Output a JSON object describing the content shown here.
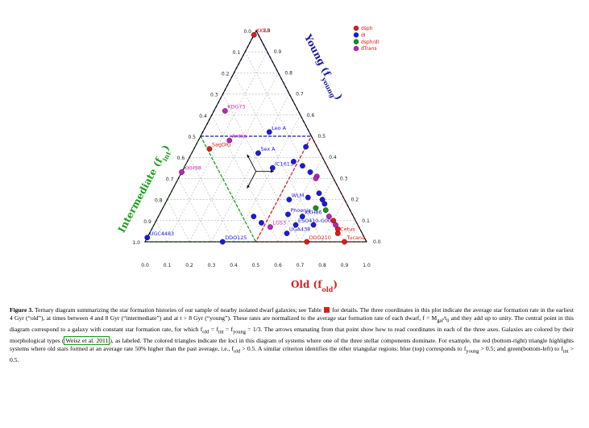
{
  "chart_data": {
    "type": "ternary",
    "axes": {
      "old": "Old (f",
      "old_sub": "old",
      "young": "Young (f",
      "young_sub": "young",
      "intermediate": "Intermediate (f",
      "intermediate_sub": "int",
      "close": ")"
    },
    "ticks": {
      "old": [
        "0.0",
        "0.1",
        "0.2",
        "0.3",
        "0.4",
        "0.5",
        "0.6",
        "0.7",
        "0.8",
        "0.9",
        "1.0"
      ],
      "young": [
        "0.0",
        "0.1",
        "0.2",
        "0.3",
        "0.4",
        "0.5",
        "0.6",
        "0.7",
        "0.8",
        "0.9",
        "1.0"
      ],
      "intermediate": [
        "0.0",
        "0.1",
        "0.2",
        "0.3",
        "0.4",
        "0.5",
        "0.6",
        "0.7",
        "0.8",
        "0.9",
        "1.0"
      ]
    },
    "legend": [
      {
        "label": "dsph",
        "color": "#e01b1b"
      },
      {
        "label": "dI",
        "color": "#1a1ae0"
      },
      {
        "label": "dsph/dI",
        "color": "#12931c"
      },
      {
        "label": "dTrans",
        "color": "#c21fc2"
      }
    ],
    "colors": {
      "old": "#d62020",
      "young": "#1a1a9e",
      "intermediate": "#18a018"
    },
    "galaxies": [
      {
        "label": "KKR3",
        "o": 0.0,
        "y": 0.98,
        "type": "dsph"
      },
      {
        "label": "KKH98",
        "o": 0.0,
        "y": 0.33,
        "type": "dTrans"
      },
      {
        "label": "Leo A",
        "o": 0.3,
        "y": 0.52,
        "type": "dI"
      },
      {
        "label": "KDG73",
        "o": 0.05,
        "y": 0.62,
        "type": "dTrans"
      },
      {
        "label": "Sex A",
        "o": 0.3,
        "y": 0.42,
        "type": "dI"
      },
      {
        "label": "IC1613",
        "o": 0.4,
        "y": 0.35,
        "type": "dI"
      },
      {
        "label": "SagDIG",
        "o": 0.07,
        "y": 0.44,
        "type": "dsph"
      },
      {
        "label": "Antlia",
        "o": 0.14,
        "y": 0.48,
        "type": "dTrans"
      },
      {
        "label": "WLM",
        "o": 0.55,
        "y": 0.2,
        "type": "dI"
      },
      {
        "label": "LGS3",
        "o": 0.53,
        "y": 0.07,
        "type": "dTrans"
      },
      {
        "label": "KKH86",
        "o": 0.65,
        "y": 0.12,
        "type": "dI"
      },
      {
        "label": "DDO125",
        "o": 0.35,
        "y": 0.0,
        "type": "dI"
      },
      {
        "label": "UGC4483",
        "o": 0.0,
        "y": 0.02,
        "type": "dI"
      },
      {
        "label": "Phoenix",
        "o": 0.58,
        "y": 0.13,
        "type": "dI"
      },
      {
        "label": "ESO410-G005",
        "o": 0.64,
        "y": 0.08,
        "type": "dI"
      },
      {
        "label": "UGA438",
        "o": 0.62,
        "y": 0.04,
        "type": "dI"
      },
      {
        "label": "DDO210",
        "o": 0.73,
        "y": 0.0,
        "type": "dsph"
      },
      {
        "label": "Cetus",
        "o": 0.85,
        "y": 0.04,
        "type": "dsph"
      },
      {
        "label": "Tucana",
        "o": 0.9,
        "y": 0.0,
        "type": "dsph"
      },
      {
        "label": "",
        "o": 0.43,
        "y": 0.12,
        "type": "dI"
      },
      {
        "label": "",
        "o": 0.48,
        "y": 0.09,
        "type": "dI"
      },
      {
        "label": "",
        "o": 0.5,
        "y": 0.45,
        "type": "dI"
      },
      {
        "label": "",
        "o": 0.48,
        "y": 0.38,
        "type": "dI"
      },
      {
        "label": "",
        "o": 0.53,
        "y": 0.36,
        "type": "dI"
      },
      {
        "label": "",
        "o": 0.58,
        "y": 0.33,
        "type": "dI"
      },
      {
        "label": "",
        "o": 0.62,
        "y": 0.31,
        "type": "dTrans"
      },
      {
        "label": "",
        "o": 0.62,
        "y": 0.3,
        "type": "dTrans"
      },
      {
        "label": "",
        "o": 0.67,
        "y": 0.23,
        "type": "dI"
      },
      {
        "label": "",
        "o": 0.7,
        "y": 0.2,
        "type": "dI"
      },
      {
        "label": "",
        "o": 0.72,
        "y": 0.18,
        "type": "dI"
      },
      {
        "label": "",
        "o": 0.74,
        "y": 0.15,
        "type": "dsph/dI"
      },
      {
        "label": "",
        "o": 0.77,
        "y": 0.12,
        "type": "dTrans"
      },
      {
        "label": "",
        "o": 0.8,
        "y": 0.1,
        "type": "dsph"
      },
      {
        "label": "",
        "o": 0.82,
        "y": 0.08,
        "type": "dTrans"
      },
      {
        "label": "",
        "o": 0.84,
        "y": 0.06,
        "type": "dsph"
      },
      {
        "label": "",
        "o": 0.72,
        "y": 0.08,
        "type": "dI"
      },
      {
        "label": "",
        "o": 0.63,
        "y": 0.21,
        "type": "dI"
      },
      {
        "label": "",
        "o": 0.69,
        "y": 0.16,
        "type": "dsph/dI"
      }
    ]
  },
  "caption": {
    "fig_label": "Figure 3.",
    "p1": " Ternary diagram summarizing the star formation histories of our sample of nearby isolated dwarf galaxies; see Table",
    "p2": " for details. The three coordinates in this plot indicate the average star formation rate in the earliest 4 Gyr (“old”), at times between 4 and 8 Gyr (“intermediate”) and at t > 8 Gyr (“young”). These rates are normalized to the average star formation rate of each dwarf, f = M",
    "sub_gal": "gal",
    "p3": "/t",
    "sub_0": "0",
    "p4": " and they add up to unity. The central point in this diagram correspond to a galaxy with constant star formation rate, for which f",
    "sub_old": "old",
    "p5": " = f",
    "sub_int": "int",
    "p6": " = f",
    "sub_young": "young",
    "p7": " = 1/3. The arrows emanating from that point show how to read coordinates in each of the three axes. Galaxies are colored by their morphological types (",
    "ref": "Weisz et al. 2011",
    "p8": "), as labeled. The colored triangles indicate the loci in this diagram of systems where one of the three stellar components dominate. For example, the red (bottom-right) triangle highlights systems where old stars formed at an average rate 50% higher than the past average, i.e., f",
    "p9": " > 0.5. A similar criterion identifies the other triangular regions: blue (top) corresponds to f",
    "p10": " > 0.5; and green(bottom-left) to f",
    "p11": " > 0.5."
  }
}
